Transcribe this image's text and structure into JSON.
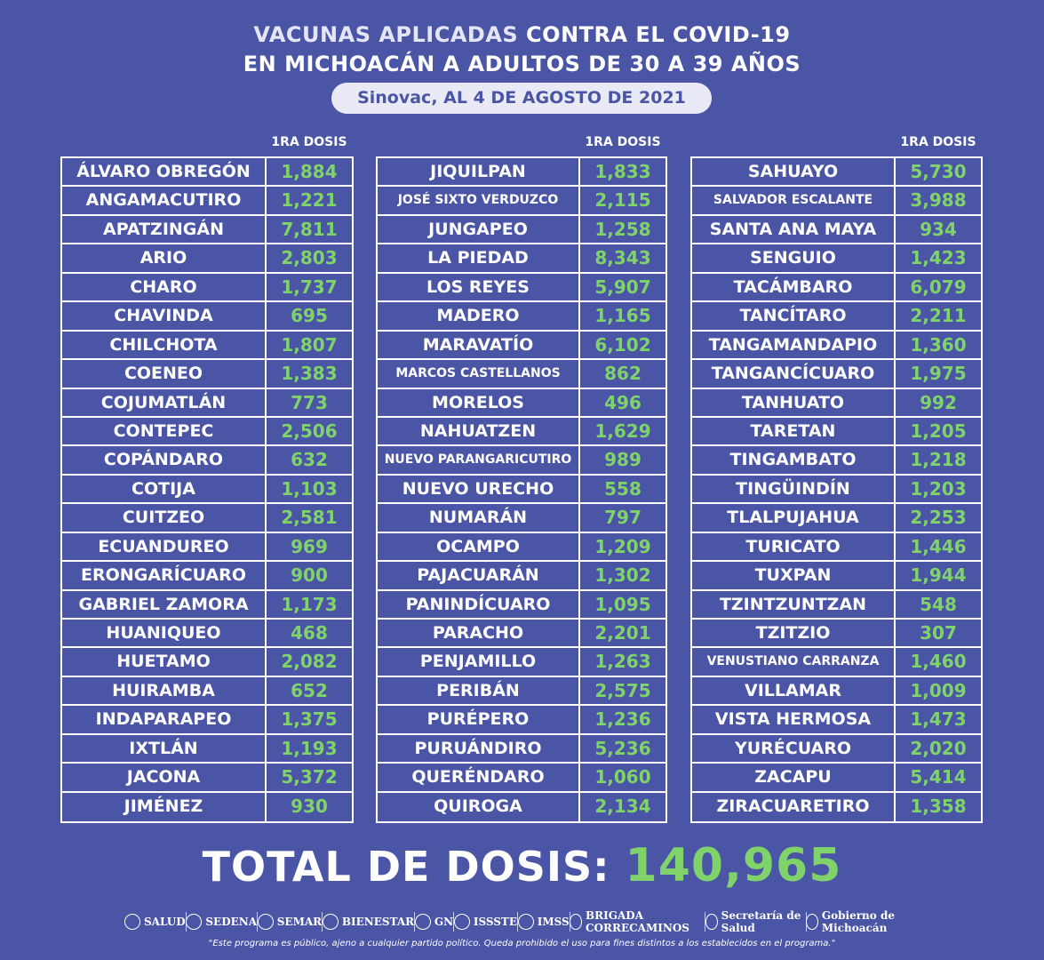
{
  "header": {
    "line1_light": "VACUNAS APLICADAS",
    "line1_bold": "CONTRA EL COVID-19",
    "line2": "EN MICHOACÁN A ADULTOS DE 30 A 39 AÑOS",
    "subtitle": "Sinovac, AL 4 DE AGOSTO DE 2021"
  },
  "column_header": "1RA DOSIS",
  "col1": [
    {
      "name": "ÁLVARO OBREGÓN",
      "value": "1,884"
    },
    {
      "name": "ANGAMACUTIRO",
      "value": "1,221"
    },
    {
      "name": "APATZINGÁN",
      "value": "7,811"
    },
    {
      "name": "ARIO",
      "value": "2,803"
    },
    {
      "name": "CHARO",
      "value": "1,737"
    },
    {
      "name": "CHAVINDA",
      "value": "695"
    },
    {
      "name": "CHILCHOTA",
      "value": "1,807"
    },
    {
      "name": "COENEO",
      "value": "1,383"
    },
    {
      "name": "COJUMATLÁN",
      "value": "773"
    },
    {
      "name": "CONTEPEC",
      "value": "2,506"
    },
    {
      "name": "COPÁNDARO",
      "value": "632"
    },
    {
      "name": "COTIJA",
      "value": "1,103"
    },
    {
      "name": "CUITZEO",
      "value": "2,581"
    },
    {
      "name": "ECUANDUREO",
      "value": "969"
    },
    {
      "name": "ERONGARÍCUARO",
      "value": "900"
    },
    {
      "name": "GABRIEL ZAMORA",
      "value": "1,173"
    },
    {
      "name": "HUANIQUEO",
      "value": "468"
    },
    {
      "name": "HUETAMO",
      "value": "2,082"
    },
    {
      "name": "HUIRAMBA",
      "value": "652"
    },
    {
      "name": "INDAPARAPEO",
      "value": "1,375"
    },
    {
      "name": "IXTLÁN",
      "value": "1,193"
    },
    {
      "name": "JACONA",
      "value": "5,372"
    },
    {
      "name": "JIMÉNEZ",
      "value": "930"
    }
  ],
  "col2": [
    {
      "name": "JIQUILPAN",
      "value": "1,833"
    },
    {
      "name": "JOSÉ SIXTO VERDUZCO",
      "value": "2,115",
      "small": true
    },
    {
      "name": "JUNGAPEO",
      "value": "1,258"
    },
    {
      "name": "LA PIEDAD",
      "value": "8,343"
    },
    {
      "name": "LOS REYES",
      "value": "5,907"
    },
    {
      "name": "MADERO",
      "value": "1,165"
    },
    {
      "name": "MARAVATÍO",
      "value": "6,102"
    },
    {
      "name": "MARCOS CASTELLANOS",
      "value": "862",
      "small": true
    },
    {
      "name": "MORELOS",
      "value": "496"
    },
    {
      "name": "NAHUATZEN",
      "value": "1,629"
    },
    {
      "name": "NUEVO PARANGARICUTIRO",
      "value": "989",
      "small": true
    },
    {
      "name": "NUEVO URECHO",
      "value": "558"
    },
    {
      "name": "NUMARÁN",
      "value": "797"
    },
    {
      "name": "OCAMPO",
      "value": "1,209"
    },
    {
      "name": "PAJACUARÁN",
      "value": "1,302"
    },
    {
      "name": "PANINDÍCUARO",
      "value": "1,095"
    },
    {
      "name": "PARACHO",
      "value": "2,201"
    },
    {
      "name": "PENJAMILLO",
      "value": "1,263"
    },
    {
      "name": "PERIBÁN",
      "value": "2,575"
    },
    {
      "name": "PURÉPERO",
      "value": "1,236"
    },
    {
      "name": "PURUÁNDIRO",
      "value": "5,236"
    },
    {
      "name": "QUERÉNDARO",
      "value": "1,060"
    },
    {
      "name": "QUIROGA",
      "value": "2,134"
    }
  ],
  "col3": [
    {
      "name": "SAHUAYO",
      "value": "5,730"
    },
    {
      "name": "SALVADOR ESCALANTE",
      "value": "3,988",
      "small": true
    },
    {
      "name": "SANTA ANA MAYA",
      "value": "934"
    },
    {
      "name": "SENGUIO",
      "value": "1,423"
    },
    {
      "name": "TACÁMBARO",
      "value": "6,079"
    },
    {
      "name": "TANCÍTARO",
      "value": "2,211"
    },
    {
      "name": "TANGAMANDAPIO",
      "value": "1,360"
    },
    {
      "name": "TANGANCÍCUARO",
      "value": "1,975"
    },
    {
      "name": "TANHUATO",
      "value": "992"
    },
    {
      "name": "TARETAN",
      "value": "1,205"
    },
    {
      "name": "TINGAMBATO",
      "value": "1,218"
    },
    {
      "name": "TINGÜINDÍN",
      "value": "1,203"
    },
    {
      "name": "TLALPUJAHUA",
      "value": "2,253"
    },
    {
      "name": "TURICATO",
      "value": "1,446"
    },
    {
      "name": "TUXPAN",
      "value": "1,944"
    },
    {
      "name": "TZINTZUNTZAN",
      "value": "548"
    },
    {
      "name": "TZITZIO",
      "value": "307"
    },
    {
      "name": "VENUSTIANO CARRANZA",
      "value": "1,460",
      "small": true
    },
    {
      "name": "VILLAMAR",
      "value": "1,009"
    },
    {
      "name": "VISTA HERMOSA",
      "value": "1,473"
    },
    {
      "name": "YURÉCUARO",
      "value": "2,020"
    },
    {
      "name": "ZACAPU",
      "value": "5,414"
    },
    {
      "name": "ZIRACUARETIRO",
      "value": "1,358"
    }
  ],
  "total": {
    "label": "TOTAL DE DOSIS:",
    "value": "140,965"
  },
  "logos": [
    "SALUD",
    "SEDENA",
    "SEMAR",
    "BIENESTAR",
    "GN",
    "ISSSTE",
    "IMSS",
    "BRIGADA CORRECAMINOS",
    "Secretaría de Salud",
    "Gobierno de Michoacán"
  ],
  "disclaimer": "\"Este programa es público, ajeno a cualquier partido político. Queda prohibido el uso para fines distintos a los establecidos en el programa.\"",
  "colors": {
    "background": "#4b55a6",
    "value_green": "#7fd36a",
    "text": "#ffffff"
  }
}
